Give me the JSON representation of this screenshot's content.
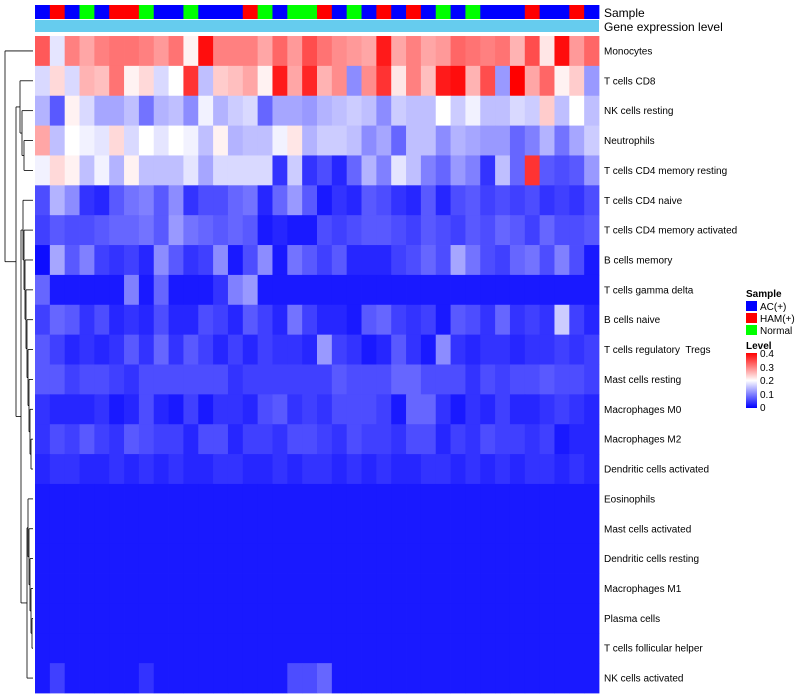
{
  "chart_data": {
    "type": "heatmap",
    "title": "",
    "row_labels": [
      "Monocytes",
      "T cells CD8",
      "NK cells resting",
      "Neutrophils",
      "T cells CD4 memory resting",
      "T cells CD4 naive",
      "T cells CD4 memory activated",
      "B cells memory",
      "T cells gamma delta",
      "B cells naive",
      "T cells regulatory  Tregs",
      "Mast cells resting",
      "Macrophages M0",
      "Macrophages M2",
      "Dendritic cells activated",
      "Eosinophils",
      "Mast cells activated",
      "Dendritic cells resting",
      "Macrophages M1",
      "Plasma cells",
      "T cells follicular helper",
      "NK cells activated"
    ],
    "column_count": 38,
    "annotations": [
      {
        "name": "Sample",
        "values": [
          "AC(+)",
          "HAM(+)",
          "AC(+)",
          "Normal",
          "AC(+)",
          "HAM(+)",
          "HAM(+)",
          "Normal",
          "AC(+)",
          "AC(+)",
          "Normal",
          "AC(+)",
          "AC(+)",
          "AC(+)",
          "HAM(+)",
          "Normal",
          "AC(+)",
          "Normal",
          "Normal",
          "HAM(+)",
          "AC(+)",
          "Normal",
          "AC(+)",
          "HAM(+)",
          "AC(+)",
          "HAM(+)",
          "AC(+)",
          "Normal",
          "AC(+)",
          "Normal",
          "AC(+)",
          "AC(+)",
          "AC(+)",
          "HAM(+)",
          "AC(+)",
          "AC(+)",
          "HAM(+)",
          "AC(+)"
        ]
      },
      {
        "name": "Gene expression level",
        "values": "uniform light-blue bar"
      }
    ],
    "legend_sample": {
      "title": "Sample",
      "entries": [
        {
          "label": "AC(+)",
          "color": "#0000ff"
        },
        {
          "label": "HAM(+)",
          "color": "#ff0000"
        },
        {
          "label": "Normal",
          "color": "#00ff00"
        }
      ]
    },
    "legend_level": {
      "title": "Level",
      "ticks": [
        "0.4",
        "0.3",
        "0.2",
        "0.1",
        "0"
      ],
      "range": [
        0,
        0.4
      ],
      "colors": {
        "low": "#0000ff",
        "mid": "#ffffff",
        "high": "#ff0000"
      }
    },
    "values": [
      [
        0.33,
        0.18,
        0.3,
        0.27,
        0.3,
        0.31,
        0.31,
        0.3,
        0.28,
        0.31,
        0.21,
        0.39,
        0.3,
        0.3,
        0.3,
        0.27,
        0.32,
        0.28,
        0.34,
        0.31,
        0.29,
        0.28,
        0.27,
        0.38,
        0.27,
        0.3,
        0.27,
        0.28,
        0.32,
        0.31,
        0.3,
        0.31,
        0.26,
        0.34,
        0.22,
        0.39,
        0.28,
        0.32
      ],
      [
        0.17,
        0.23,
        0.17,
        0.26,
        0.25,
        0.31,
        0.21,
        0.23,
        0.17,
        0.2,
        0.36,
        0.15,
        0.24,
        0.25,
        0.27,
        0.21,
        0.38,
        0.27,
        0.37,
        0.26,
        0.29,
        0.11,
        0.29,
        0.36,
        0.22,
        0.3,
        0.25,
        0.38,
        0.39,
        0.26,
        0.34,
        0.12,
        0.4,
        0.27,
        0.32,
        0.21,
        0.24,
        0.12
      ],
      [
        0.14,
        0.07,
        0.21,
        0.17,
        0.13,
        0.13,
        0.15,
        0.09,
        0.14,
        0.15,
        0.11,
        0.19,
        0.14,
        0.16,
        0.17,
        0.08,
        0.13,
        0.13,
        0.12,
        0.14,
        0.15,
        0.16,
        0.15,
        0.11,
        0.16,
        0.15,
        0.15,
        0.2,
        0.16,
        0.19,
        0.15,
        0.15,
        0.17,
        0.16,
        0.24,
        0.15,
        0.2,
        0.15
      ],
      [
        0.27,
        0.15,
        0.2,
        0.19,
        0.18,
        0.23,
        0.17,
        0.2,
        0.18,
        0.2,
        0.19,
        0.15,
        0.21,
        0.14,
        0.15,
        0.15,
        0.19,
        0.22,
        0.14,
        0.16,
        0.16,
        0.15,
        0.11,
        0.13,
        0.08,
        0.15,
        0.15,
        0.11,
        0.14,
        0.13,
        0.12,
        0.12,
        0.08,
        0.1,
        0.14,
        0.09,
        0.13,
        0.16
      ],
      [
        0.19,
        0.23,
        0.21,
        0.15,
        0.19,
        0.14,
        0.21,
        0.15,
        0.15,
        0.15,
        0.18,
        0.13,
        0.17,
        0.17,
        0.17,
        0.17,
        0.04,
        0.16,
        0.04,
        0.06,
        0.03,
        0.08,
        0.14,
        0.1,
        0.18,
        0.15,
        0.1,
        0.08,
        0.12,
        0.1,
        0.04,
        0.15,
        0.08,
        0.36,
        0.07,
        0.06,
        0.07,
        0.12
      ],
      [
        0.06,
        0.14,
        0.11,
        0.04,
        0.03,
        0.07,
        0.09,
        0.1,
        0.07,
        0.11,
        0.04,
        0.06,
        0.06,
        0.08,
        0.09,
        0.03,
        0.08,
        0.12,
        0.07,
        0.02,
        0.04,
        0.03,
        0.07,
        0.06,
        0.04,
        0.03,
        0.07,
        0.03,
        0.06,
        0.07,
        0.05,
        0.06,
        0.05,
        0.06,
        0.04,
        0.05,
        0.04,
        0.06
      ],
      [
        0.05,
        0.07,
        0.06,
        0.06,
        0.07,
        0.08,
        0.08,
        0.09,
        0.07,
        0.12,
        0.09,
        0.08,
        0.07,
        0.08,
        0.07,
        0.02,
        0.03,
        0.02,
        0.02,
        0.06,
        0.05,
        0.06,
        0.07,
        0.07,
        0.06,
        0.05,
        0.07,
        0.06,
        0.05,
        0.07,
        0.06,
        0.08,
        0.07,
        0.05,
        0.08,
        0.06,
        0.06,
        0.07
      ],
      [
        0.01,
        0.13,
        0.07,
        0.1,
        0.05,
        0.04,
        0.05,
        0.03,
        0.11,
        0.07,
        0.04,
        0.05,
        0.11,
        0.02,
        0.06,
        0.11,
        0.02,
        0.09,
        0.07,
        0.05,
        0.07,
        0.03,
        0.03,
        0.03,
        0.05,
        0.06,
        0.08,
        0.06,
        0.13,
        0.09,
        0.06,
        0.05,
        0.08,
        0.09,
        0.06,
        0.1,
        0.06,
        0.02
      ],
      [
        0.08,
        0.02,
        0.02,
        0.02,
        0.02,
        0.02,
        0.1,
        0.02,
        0.08,
        0.02,
        0.02,
        0.02,
        0.04,
        0.1,
        0.12,
        0.02,
        0.02,
        0.02,
        0.02,
        0.02,
        0.02,
        0.02,
        0.02,
        0.02,
        0.02,
        0.02,
        0.02,
        0.02,
        0.02,
        0.02,
        0.02,
        0.02,
        0.02,
        0.02,
        0.02,
        0.02,
        0.02,
        0.02
      ],
      [
        0.05,
        0.08,
        0.07,
        0.04,
        0.06,
        0.03,
        0.04,
        0.03,
        0.06,
        0.03,
        0.03,
        0.06,
        0.05,
        0.03,
        0.07,
        0.05,
        0.03,
        0.09,
        0.05,
        0.03,
        0.03,
        0.02,
        0.07,
        0.08,
        0.05,
        0.04,
        0.05,
        0.02,
        0.07,
        0.06,
        0.04,
        0.08,
        0.04,
        0.05,
        0.04,
        0.16,
        0.05,
        0.03
      ],
      [
        0.07,
        0.05,
        0.03,
        0.04,
        0.03,
        0.04,
        0.07,
        0.04,
        0.08,
        0.04,
        0.07,
        0.05,
        0.03,
        0.05,
        0.03,
        0.05,
        0.04,
        0.04,
        0.03,
        0.12,
        0.05,
        0.04,
        0.02,
        0.03,
        0.07,
        0.04,
        0.02,
        0.11,
        0.04,
        0.03,
        0.04,
        0.04,
        0.03,
        0.04,
        0.04,
        0.05,
        0.04,
        0.05
      ],
      [
        0.07,
        0.07,
        0.05,
        0.06,
        0.06,
        0.05,
        0.04,
        0.06,
        0.06,
        0.06,
        0.06,
        0.06,
        0.06,
        0.04,
        0.05,
        0.05,
        0.05,
        0.05,
        0.05,
        0.05,
        0.07,
        0.06,
        0.06,
        0.06,
        0.08,
        0.08,
        0.06,
        0.06,
        0.06,
        0.04,
        0.06,
        0.05,
        0.06,
        0.06,
        0.07,
        0.06,
        0.06,
        0.05
      ],
      [
        0.04,
        0.03,
        0.03,
        0.03,
        0.04,
        0.02,
        0.03,
        0.06,
        0.03,
        0.02,
        0.05,
        0.02,
        0.04,
        0.04,
        0.03,
        0.06,
        0.07,
        0.04,
        0.05,
        0.04,
        0.06,
        0.06,
        0.06,
        0.05,
        0.02,
        0.08,
        0.08,
        0.04,
        0.02,
        0.04,
        0.03,
        0.05,
        0.03,
        0.03,
        0.04,
        0.05,
        0.04,
        0.03
      ],
      [
        0.04,
        0.06,
        0.05,
        0.07,
        0.05,
        0.04,
        0.07,
        0.06,
        0.05,
        0.05,
        0.03,
        0.06,
        0.06,
        0.03,
        0.05,
        0.05,
        0.04,
        0.06,
        0.06,
        0.05,
        0.04,
        0.06,
        0.05,
        0.05,
        0.04,
        0.06,
        0.06,
        0.03,
        0.05,
        0.04,
        0.06,
        0.05,
        0.05,
        0.04,
        0.05,
        0.02,
        0.03,
        0.03
      ],
      [
        0.03,
        0.04,
        0.04,
        0.03,
        0.03,
        0.04,
        0.03,
        0.04,
        0.03,
        0.04,
        0.03,
        0.03,
        0.04,
        0.04,
        0.03,
        0.03,
        0.04,
        0.03,
        0.04,
        0.04,
        0.03,
        0.04,
        0.03,
        0.04,
        0.03,
        0.03,
        0.04,
        0.04,
        0.03,
        0.04,
        0.03,
        0.04,
        0.03,
        0.04,
        0.04,
        0.03,
        0.04,
        0.03
      ],
      [
        0.02,
        0.02,
        0.02,
        0.02,
        0.02,
        0.02,
        0.02,
        0.02,
        0.02,
        0.02,
        0.02,
        0.02,
        0.02,
        0.02,
        0.02,
        0.02,
        0.02,
        0.02,
        0.02,
        0.02,
        0.02,
        0.02,
        0.02,
        0.02,
        0.02,
        0.02,
        0.02,
        0.02,
        0.02,
        0.02,
        0.02,
        0.02,
        0.02,
        0.02,
        0.02,
        0.02,
        0.02,
        0.02
      ],
      [
        0.02,
        0.02,
        0.02,
        0.02,
        0.02,
        0.02,
        0.02,
        0.02,
        0.02,
        0.02,
        0.02,
        0.02,
        0.02,
        0.02,
        0.02,
        0.02,
        0.02,
        0.02,
        0.02,
        0.02,
        0.02,
        0.02,
        0.02,
        0.02,
        0.02,
        0.02,
        0.02,
        0.02,
        0.02,
        0.02,
        0.02,
        0.02,
        0.02,
        0.02,
        0.02,
        0.02,
        0.02,
        0.02
      ],
      [
        0.02,
        0.02,
        0.02,
        0.02,
        0.02,
        0.02,
        0.02,
        0.02,
        0.02,
        0.02,
        0.02,
        0.02,
        0.02,
        0.02,
        0.02,
        0.02,
        0.02,
        0.02,
        0.02,
        0.02,
        0.02,
        0.02,
        0.02,
        0.02,
        0.02,
        0.02,
        0.02,
        0.02,
        0.02,
        0.02,
        0.02,
        0.02,
        0.02,
        0.02,
        0.02,
        0.02,
        0.02,
        0.02
      ],
      [
        0.02,
        0.02,
        0.02,
        0.02,
        0.02,
        0.02,
        0.02,
        0.02,
        0.02,
        0.02,
        0.02,
        0.02,
        0.02,
        0.02,
        0.02,
        0.02,
        0.02,
        0.02,
        0.02,
        0.02,
        0.02,
        0.02,
        0.02,
        0.02,
        0.02,
        0.02,
        0.02,
        0.02,
        0.02,
        0.02,
        0.02,
        0.02,
        0.02,
        0.02,
        0.02,
        0.02,
        0.02,
        0.02
      ],
      [
        0.02,
        0.02,
        0.02,
        0.02,
        0.02,
        0.02,
        0.02,
        0.02,
        0.02,
        0.02,
        0.02,
        0.02,
        0.02,
        0.02,
        0.02,
        0.02,
        0.02,
        0.02,
        0.02,
        0.02,
        0.02,
        0.02,
        0.02,
        0.02,
        0.02,
        0.02,
        0.02,
        0.02,
        0.02,
        0.02,
        0.02,
        0.02,
        0.02,
        0.02,
        0.02,
        0.02,
        0.02,
        0.02
      ],
      [
        0.02,
        0.02,
        0.02,
        0.02,
        0.02,
        0.02,
        0.02,
        0.02,
        0.02,
        0.02,
        0.02,
        0.02,
        0.02,
        0.02,
        0.02,
        0.02,
        0.02,
        0.02,
        0.02,
        0.02,
        0.02,
        0.02,
        0.02,
        0.02,
        0.02,
        0.02,
        0.02,
        0.02,
        0.02,
        0.02,
        0.02,
        0.02,
        0.02,
        0.02,
        0.02,
        0.02,
        0.02,
        0.02
      ],
      [
        0.02,
        0.05,
        0.02,
        0.02,
        0.02,
        0.02,
        0.02,
        0.04,
        0.02,
        0.02,
        0.02,
        0.02,
        0.02,
        0.02,
        0.02,
        0.02,
        0.02,
        0.06,
        0.06,
        0.08,
        0.02,
        0.02,
        0.02,
        0.02,
        0.02,
        0.02,
        0.02,
        0.02,
        0.02,
        0.02,
        0.02,
        0.02,
        0.02,
        0.02,
        0.02,
        0.02,
        0.02,
        0.02
      ]
    ]
  }
}
